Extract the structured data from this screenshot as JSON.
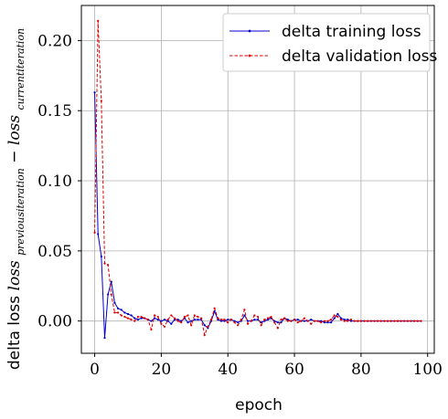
{
  "chart_data": {
    "type": "line",
    "xlabel": "epoch",
    "ylabel": {
      "prefix": "delta loss ",
      "loss1": "loss",
      "sub1": "previousiteration",
      "minus": " − ",
      "loss2": "loss",
      "sub2": "currentiteration"
    },
    "xlim": [
      -4,
      102
    ],
    "ylim": [
      -0.023,
      0.225
    ],
    "x_ticks": [
      0,
      20,
      40,
      60,
      80,
      100
    ],
    "y_ticks": [
      0.0,
      0.05,
      0.1,
      0.15,
      0.2
    ],
    "x_tick_labels": [
      "0",
      "20",
      "40",
      "60",
      "80",
      "100"
    ],
    "y_tick_labels": [
      "0.00",
      "0.05",
      "0.10",
      "0.15",
      "0.20"
    ],
    "grid": true,
    "legend_position": "upper-right",
    "series": [
      {
        "name": "delta training loss",
        "color": "#0000cc",
        "linestyle": "solid",
        "x": [
          0,
          1,
          2,
          3,
          4,
          5,
          6,
          7,
          8,
          9,
          10,
          11,
          12,
          13,
          14,
          15,
          16,
          17,
          18,
          19,
          20,
          21,
          22,
          23,
          24,
          25,
          26,
          27,
          28,
          29,
          30,
          31,
          32,
          33,
          34,
          35,
          36,
          37,
          38,
          39,
          40,
          41,
          42,
          43,
          44,
          45,
          46,
          47,
          48,
          49,
          50,
          51,
          52,
          53,
          54,
          55,
          56,
          57,
          58,
          59,
          60,
          61,
          62,
          63,
          64,
          65,
          66,
          67,
          68,
          69,
          70,
          71,
          72,
          73,
          74,
          75,
          76,
          77,
          78,
          79,
          80,
          81,
          82,
          83,
          84,
          85,
          86,
          87,
          88,
          89,
          90,
          91,
          92,
          93,
          94,
          95,
          96,
          97,
          98
        ],
        "y": [
          0.163,
          0.062,
          0.046,
          -0.012,
          0.019,
          0.028,
          0.013,
          0.009,
          0.008,
          0.006,
          0.005,
          0.004,
          0.002,
          0.001,
          0.002,
          0.002,
          0.001,
          0.0,
          0.002,
          0.001,
          0.0,
          0.001,
          0.0,
          -0.002,
          0.001,
          0.001,
          0.0,
          0.002,
          -0.001,
          0.0,
          0.001,
          0.001,
          0.001,
          -0.003,
          -0.005,
          0.0,
          0.007,
          0.001,
          0.0,
          0.0,
          0.001,
          0.001,
          0.0,
          -0.001,
          0.0,
          0.004,
          0.0,
          0.0,
          0.001,
          0.001,
          -0.001,
          0.0,
          0.001,
          0.002,
          0.0,
          -0.001,
          -0.001,
          0.002,
          0.001,
          0.0,
          0.001,
          0.001,
          0.0,
          0.0,
          0.0,
          0.001,
          0.0,
          0.0,
          0.0,
          -0.001,
          -0.001,
          -0.001,
          0.002,
          0.005,
          0.002,
          0.001,
          0.001,
          0.0,
          0.0,
          0.0,
          0.0,
          0.0,
          0.0,
          0.0,
          0.0,
          0.0,
          0.0,
          0.0,
          0.0,
          0.0,
          0.0,
          0.0,
          0.0,
          0.0,
          0.0,
          0.0,
          0.0,
          0.0,
          0.0
        ]
      },
      {
        "name": "delta validation loss",
        "color": "#dd0000",
        "linestyle": "dashed",
        "x": [
          0,
          1,
          2,
          3,
          4,
          5,
          6,
          7,
          8,
          9,
          10,
          11,
          12,
          13,
          14,
          15,
          16,
          17,
          18,
          19,
          20,
          21,
          22,
          23,
          24,
          25,
          26,
          27,
          28,
          29,
          30,
          31,
          32,
          33,
          34,
          35,
          36,
          37,
          38,
          39,
          40,
          41,
          42,
          43,
          44,
          45,
          46,
          47,
          48,
          49,
          50,
          51,
          52,
          53,
          54,
          55,
          56,
          57,
          58,
          59,
          60,
          61,
          62,
          63,
          64,
          65,
          66,
          67,
          68,
          69,
          70,
          71,
          72,
          73,
          74,
          75,
          76,
          77,
          78,
          79,
          80,
          81,
          82,
          83,
          84,
          85,
          86,
          87,
          88,
          89,
          90,
          91,
          92,
          93,
          94,
          95,
          96,
          97,
          98
        ],
        "y": [
          0.063,
          0.214,
          0.157,
          0.041,
          0.04,
          0.019,
          0.006,
          0.006,
          0.004,
          0.003,
          0.002,
          0.001,
          0.0,
          0.003,
          0.003,
          0.002,
          0.001,
          -0.006,
          0.004,
          0.003,
          -0.002,
          -0.004,
          0.001,
          0.004,
          0.002,
          0.0,
          -0.001,
          0.003,
          0.004,
          -0.003,
          0.004,
          0.003,
          0.002,
          -0.01,
          -0.004,
          0.001,
          0.009,
          0.002,
          0.001,
          0.001,
          -0.001,
          0.001,
          -0.001,
          -0.003,
          0.001,
          0.008,
          -0.002,
          0.0,
          0.004,
          0.003,
          -0.003,
          0.001,
          0.002,
          0.003,
          -0.001,
          -0.005,
          0.001,
          0.002,
          0.0,
          0.0,
          0.001,
          -0.001,
          0.0,
          0.002,
          0.0,
          -0.002,
          0.0,
          0.0,
          -0.001,
          0.0,
          0.0,
          0.001,
          0.004,
          0.003,
          0.001,
          0.0,
          0.0,
          0.001,
          0.0,
          0.0,
          0.0,
          0.0,
          0.0,
          0.0,
          0.0,
          0.0,
          0.0,
          0.0,
          0.0,
          0.0,
          0.0,
          0.0,
          0.0,
          0.0,
          0.0,
          0.0,
          0.0,
          0.0,
          0.0
        ]
      }
    ]
  }
}
